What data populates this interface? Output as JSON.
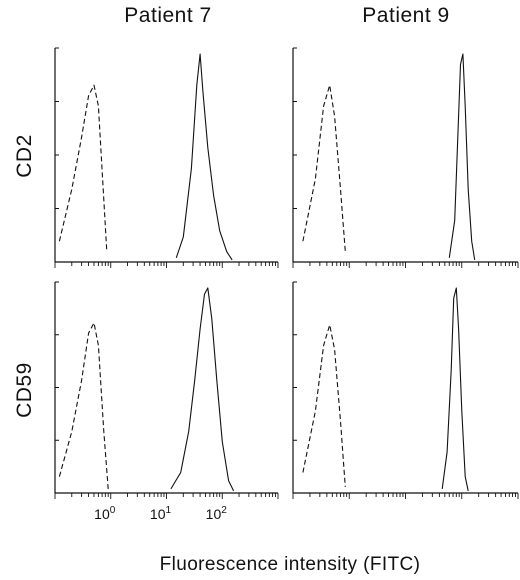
{
  "column_titles": [
    "Patient  7",
    "Patient  9"
  ],
  "row_labels": [
    "CD2",
    "CD59"
  ],
  "x_axis_label": "Fluorescence intensity (FITC)",
  "x_tick_labels": [
    {
      "base": "10",
      "exp": "0",
      "value": 1
    },
    {
      "base": "10",
      "exp": "1",
      "value": 10
    },
    {
      "base": "10",
      "exp": "2",
      "value": 100
    }
  ],
  "chart_data": [
    {
      "type": "line",
      "panel": "Patient 7 / CD2",
      "x_scale": "log",
      "series": [
        {
          "line_style": "dashed",
          "x": [
            0.12,
            0.2,
            0.3,
            0.4,
            0.5,
            0.6,
            0.75,
            0.85
          ],
          "y": [
            0.1,
            0.35,
            0.6,
            0.8,
            0.85,
            0.75,
            0.3,
            0.05
          ]
        },
        {
          "line_style": "solid",
          "x": [
            15,
            20,
            28,
            35,
            40,
            45,
            55,
            70,
            90,
            120,
            150
          ],
          "y": [
            0.02,
            0.12,
            0.45,
            0.85,
            1.0,
            0.82,
            0.55,
            0.32,
            0.15,
            0.05,
            0.01
          ]
        }
      ]
    },
    {
      "type": "line",
      "panel": "Patient 9 / CD2",
      "x_scale": "log",
      "series": [
        {
          "line_style": "dashed",
          "x": [
            0.15,
            0.25,
            0.35,
            0.45,
            0.55,
            0.7,
            0.85
          ],
          "y": [
            0.1,
            0.4,
            0.75,
            0.85,
            0.7,
            0.35,
            0.05
          ]
        },
        {
          "line_style": "solid",
          "x": [
            60,
            75,
            85,
            95,
            105,
            115,
            130,
            150,
            170
          ],
          "y": [
            0.02,
            0.2,
            0.6,
            0.95,
            1.0,
            0.75,
            0.35,
            0.1,
            0.01
          ]
        }
      ]
    },
    {
      "type": "line",
      "panel": "Patient 7 / CD59",
      "x_scale": "log",
      "series": [
        {
          "line_style": "dashed",
          "x": [
            0.12,
            0.2,
            0.3,
            0.4,
            0.5,
            0.6,
            0.75,
            0.9
          ],
          "y": [
            0.08,
            0.3,
            0.55,
            0.78,
            0.83,
            0.72,
            0.3,
            0.02
          ]
        },
        {
          "line_style": "solid",
          "x": [
            12,
            18,
            25,
            32,
            40,
            48,
            55,
            65,
            80,
            100,
            130,
            160
          ],
          "y": [
            0.02,
            0.1,
            0.3,
            0.55,
            0.8,
            0.97,
            1.0,
            0.85,
            0.55,
            0.25,
            0.06,
            0.01
          ]
        }
      ]
    },
    {
      "type": "line",
      "panel": "Patient 9 / CD59",
      "x_scale": "log",
      "series": [
        {
          "line_style": "dashed",
          "x": [
            0.15,
            0.25,
            0.35,
            0.45,
            0.55,
            0.7,
            0.85
          ],
          "y": [
            0.1,
            0.4,
            0.72,
            0.82,
            0.7,
            0.35,
            0.03
          ]
        },
        {
          "line_style": "solid",
          "x": [
            45,
            55,
            65,
            72,
            80,
            88,
            100,
            115,
            130
          ],
          "y": [
            0.02,
            0.2,
            0.6,
            0.95,
            1.0,
            0.8,
            0.4,
            0.08,
            0.01
          ]
        }
      ]
    }
  ]
}
